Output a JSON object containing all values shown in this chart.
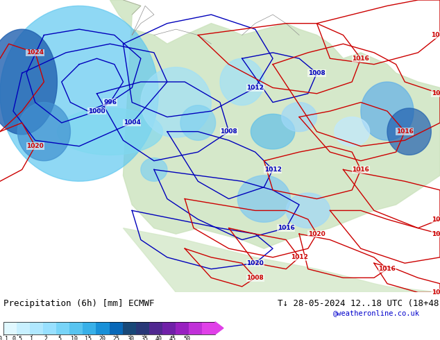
{
  "title_left": "Precipitation (6h) [mm] ECMWF",
  "title_right": "T↓ 28-05-2024 12..18 UTC (18+48)",
  "watermark": "@weatheronline.co.uk",
  "colorbar_values": [
    0.1,
    0.5,
    1,
    2,
    5,
    10,
    15,
    20,
    25,
    30,
    35,
    40,
    45,
    50
  ],
  "colorbar_colors": [
    "#e0f8ff",
    "#c0f0ff",
    "#a0e8ff",
    "#80e0ff",
    "#60d0f0",
    "#40c0e8",
    "#20a8e0",
    "#1080c8",
    "#0060b0",
    "#204080",
    "#402080",
    "#6020a0",
    "#8020c0",
    "#c020e0",
    "#e040f0"
  ],
  "bg_color": "#f0f0f0",
  "map_bg": "#d8ecd8",
  "sea_color": "#c8e8f0",
  "land_color": "#e8e8e0",
  "precip_light_blue": "#a0e0f8",
  "precip_medium_blue": "#4090d0",
  "precip_deep_blue": "#1060a0",
  "isobar_blue_color": "#0000cc",
  "isobar_red_color": "#cc0000",
  "contour_gray": "#909090",
  "font_size_title": 9,
  "font_size_labels": 7.5,
  "font_size_watermark": 7.5
}
